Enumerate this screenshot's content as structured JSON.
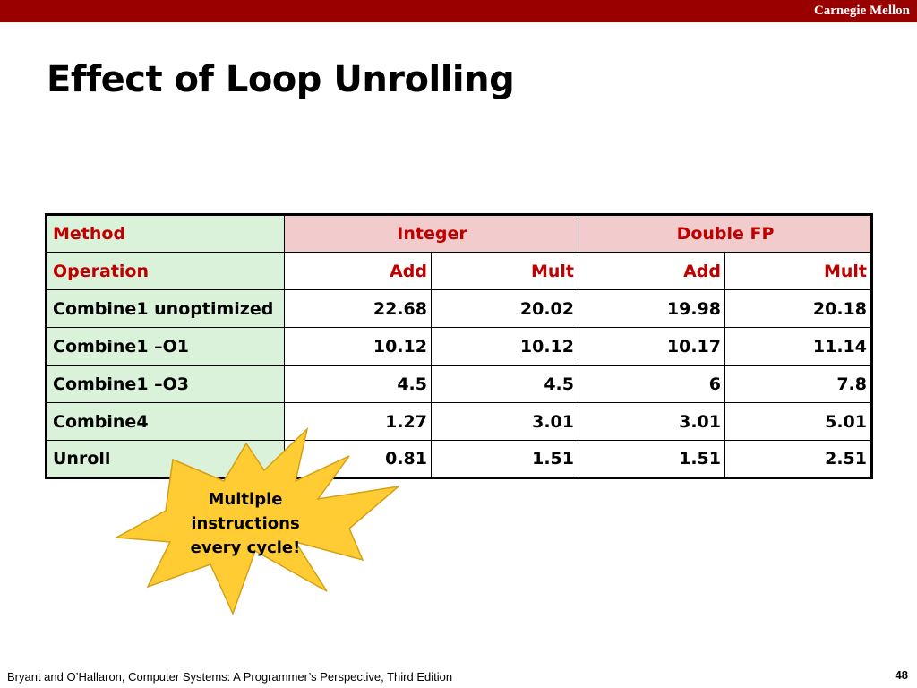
{
  "header": {
    "brand": "Carnegie Mellon"
  },
  "slide": {
    "title": "Effect of Loop Unrolling"
  },
  "table": {
    "method_label": "Method",
    "group_headers": [
      "Integer",
      "Double FP"
    ],
    "operation_label": "Operation",
    "operations": [
      "Add",
      "Mult",
      "Add",
      "Mult"
    ],
    "rows": [
      {
        "name": "Combine1 unoptimized",
        "values": [
          "22.68",
          "20.02",
          "19.98",
          "20.18"
        ]
      },
      {
        "name": "Combine1 –O1",
        "values": [
          "10.12",
          "10.12",
          "10.17",
          "11.14"
        ]
      },
      {
        "name": "Combine1 –O3",
        "values": [
          "4.5",
          "4.5",
          "6",
          "7.8"
        ]
      },
      {
        "name": "Combine4",
        "values": [
          "1.27",
          "3.01",
          "3.01",
          "5.01"
        ]
      },
      {
        "name": "Unroll",
        "values": [
          "0.81",
          "1.51",
          "1.51",
          "2.51"
        ]
      }
    ]
  },
  "callout": {
    "lines": [
      "Multiple",
      "instructions",
      "every cycle!"
    ]
  },
  "footer": {
    "citation": "Bryant and O’Hallaron, Computer Systems: A Programmer’s Perspective, Third Edition",
    "page_number": "48"
  },
  "colors": {
    "header_bar": "#990000",
    "method_column": "#d9f2d9",
    "group_header": "#f2cccc",
    "header_text": "#c00000",
    "callout_fill": "#ffcc33"
  }
}
